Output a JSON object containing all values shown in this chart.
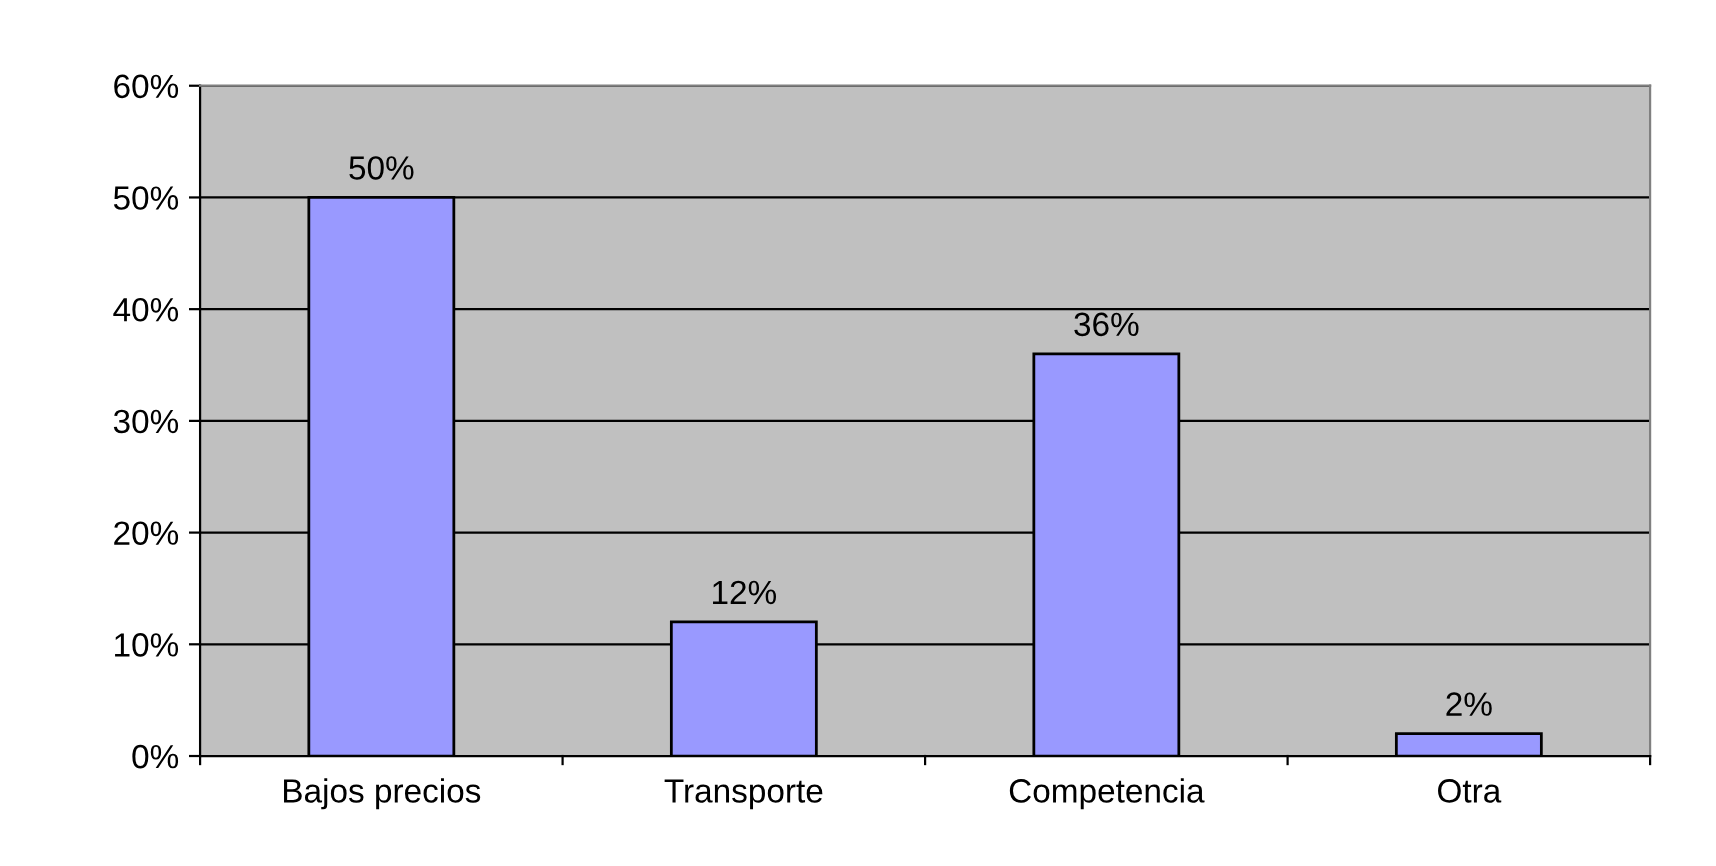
{
  "chart_data": {
    "type": "bar",
    "categories": [
      "Bajos precios",
      "Transporte",
      "Competencia",
      "Otra"
    ],
    "values": [
      50,
      12,
      36,
      2
    ],
    "value_labels": [
      "50%",
      "12%",
      "36%",
      "2%"
    ],
    "color": "#9999ff",
    "ylim": [
      0,
      60
    ],
    "yticks": [
      {
        "value": 0,
        "label": "0%"
      },
      {
        "value": 10,
        "label": "10%"
      },
      {
        "value": 20,
        "label": "20%"
      },
      {
        "value": 30,
        "label": "30%"
      },
      {
        "value": 40,
        "label": "40%"
      },
      {
        "value": 50,
        "label": "50%"
      },
      {
        "value": 60,
        "label": "60%"
      }
    ],
    "grid": "y",
    "legend": false
  }
}
